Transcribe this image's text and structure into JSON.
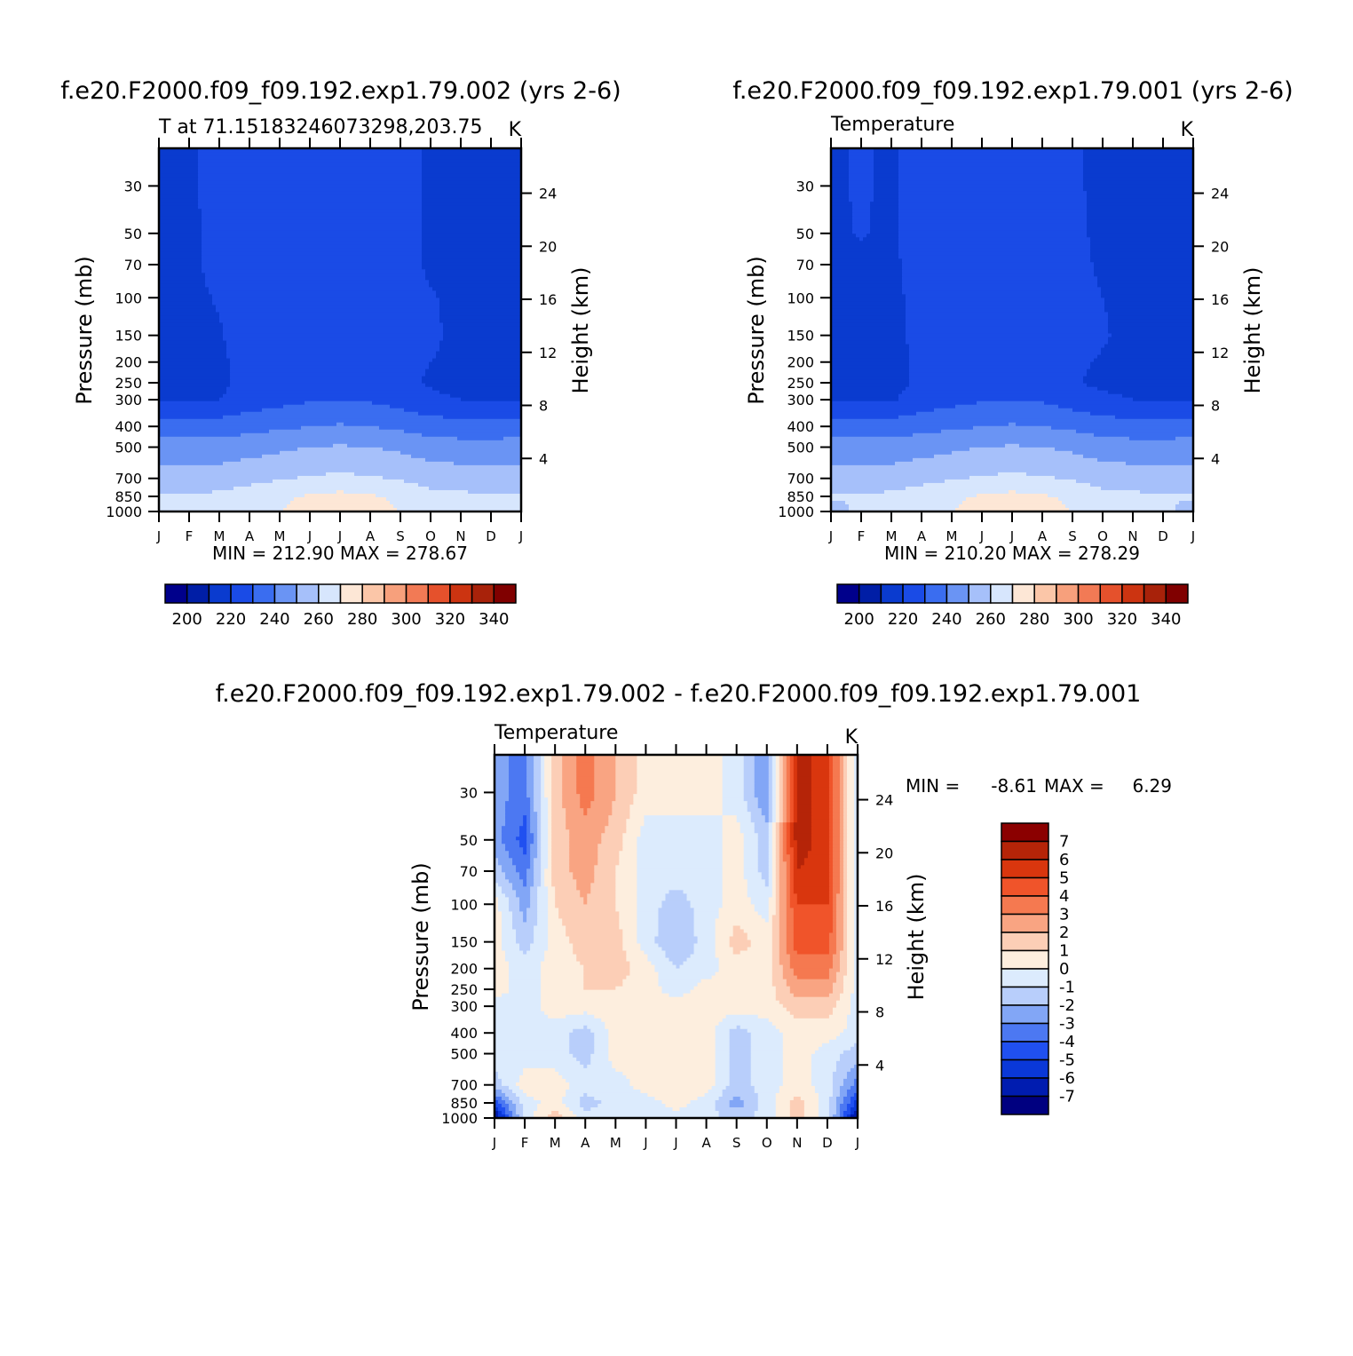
{
  "colors": {
    "cmap_abs": [
      "#00008b",
      "#001ea6",
      "#0a3bcf",
      "#1a4be6",
      "#3a6df0",
      "#6a94f4",
      "#a6c0fa",
      "#d7e6fd",
      "#fde7d6",
      "#fbc6a8",
      "#f7a07c",
      "#f27a55",
      "#e5512c",
      "#cc3411",
      "#a8220a",
      "#800000"
    ],
    "cmap_diff": [
      "#000080",
      "#001cb0",
      "#0a38d8",
      "#2050f0",
      "#4c78f2",
      "#82a6f6",
      "#b8cefb",
      "#dcebfd",
      "#fdeede",
      "#fcceb6",
      "#f9a482",
      "#f57950",
      "#f0542a",
      "#d9360e",
      "#b52408",
      "#8b0000"
    ]
  },
  "charts": [
    {
      "type": "contour",
      "title": "f.e20.F2000.f09_f09.192.exp1.79.002 (yrs 2-6)",
      "subtitle_left": "T at 71.15183246073298,203.75",
      "subtitle_right": "K",
      "ylabel": "Pressure (mb)",
      "y2label": "Height (km)",
      "x_ticks": [
        "J",
        "F",
        "M",
        "A",
        "M",
        "J",
        "J",
        "A",
        "S",
        "O",
        "N",
        "D",
        "J"
      ],
      "pressure_ticks": [
        "30",
        "50",
        "70",
        "100",
        "150",
        "200",
        "250",
        "300",
        "400",
        "500",
        "700",
        "850",
        "1000"
      ],
      "height_ticks": [
        "24",
        "20",
        "16",
        "12",
        "8",
        "4"
      ],
      "minmax": "MIN = 212.90  MAX = 278.67",
      "colorbar_labels": [
        "200",
        "220",
        "240",
        "260",
        "280",
        "300",
        "320",
        "340"
      ]
    },
    {
      "type": "contour",
      "title": "f.e20.F2000.f09_f09.192.exp1.79.001 (yrs 2-6)",
      "subtitle_left": "Temperature",
      "subtitle_right": "K",
      "ylabel": "Pressure (mb)",
      "y2label": "Height (km)",
      "x_ticks": [
        "J",
        "F",
        "M",
        "A",
        "M",
        "J",
        "J",
        "A",
        "S",
        "O",
        "N",
        "D",
        "J"
      ],
      "pressure_ticks": [
        "30",
        "50",
        "70",
        "100",
        "150",
        "200",
        "250",
        "300",
        "400",
        "500",
        "700",
        "850",
        "1000"
      ],
      "height_ticks": [
        "24",
        "20",
        "16",
        "12",
        "8",
        "4"
      ],
      "minmax": "MIN = 210.20  MAX = 278.29",
      "colorbar_labels": [
        "200",
        "220",
        "240",
        "260",
        "280",
        "300",
        "320",
        "340"
      ]
    },
    {
      "type": "contour",
      "title": "f.e20.F2000.f09_f09.192.exp1.79.002 - f.e20.F2000.f09_f09.192.exp1.79.001",
      "subtitle_left": "Temperature",
      "subtitle_right": "K",
      "ylabel": "Pressure (mb)",
      "y2label": "Height (km)",
      "x_ticks": [
        "J",
        "F",
        "M",
        "A",
        "M",
        "J",
        "J",
        "A",
        "S",
        "O",
        "N",
        "D",
        "J"
      ],
      "pressure_ticks": [
        "30",
        "50",
        "70",
        "100",
        "150",
        "200",
        "250",
        "300",
        "400",
        "500",
        "700",
        "850",
        "1000"
      ],
      "height_ticks": [
        "24",
        "20",
        "16",
        "12",
        "8",
        "4"
      ],
      "minmax_label_min": "MIN =",
      "minmax_min": "-8.61",
      "minmax_label_max": "MAX =",
      "minmax_max": "6.29",
      "colorbar_labels": [
        "7",
        "6",
        "5",
        "4",
        "3",
        "2",
        "1",
        "0",
        "-1",
        "-2",
        "-3",
        "-4",
        "-5",
        "-6",
        "-7"
      ]
    }
  ],
  "chart_data": [
    {
      "type": "heatmap",
      "title": "f.e20.F2000.f09_f09.192.exp1.79.002 (yrs 2-6)",
      "variable": "T",
      "units": "K",
      "x": [
        "Jan",
        "Feb",
        "Mar",
        "Apr",
        "May",
        "Jun",
        "Jul",
        "Aug",
        "Sep",
        "Oct",
        "Nov",
        "Dec",
        "Jan"
      ],
      "y_pressure_mb": [
        30,
        50,
        70,
        100,
        150,
        200,
        250,
        300,
        400,
        500,
        700,
        850,
        1000
      ],
      "levels": [
        190,
        200,
        210,
        220,
        230,
        240,
        250,
        260,
        270,
        280,
        290,
        300,
        310,
        320,
        330,
        340
      ],
      "z": [
        [
          217,
          217,
          226,
          228,
          228,
          228,
          228,
          228,
          226,
          217,
          217,
          217,
          217
        ],
        [
          217,
          217,
          225,
          228,
          228,
          228,
          228,
          228,
          226,
          218,
          217,
          217,
          217
        ],
        [
          217,
          217,
          224,
          228,
          228,
          228,
          228,
          228,
          225,
          218,
          217,
          217,
          217
        ],
        [
          217,
          217,
          221,
          228,
          228,
          228,
          228,
          228,
          224,
          221,
          217,
          217,
          217
        ],
        [
          217,
          217,
          219,
          226,
          228,
          228,
          228,
          228,
          224,
          222,
          217,
          217,
          217
        ],
        [
          217,
          217,
          218,
          224,
          228,
          228,
          228,
          228,
          223,
          220,
          217,
          217,
          217
        ],
        [
          217,
          217,
          218,
          223,
          227,
          228,
          228,
          228,
          222,
          219,
          217,
          217,
          217
        ],
        [
          219,
          219,
          220,
          224,
          227,
          229,
          230,
          229,
          226,
          222,
          220,
          219,
          219
        ],
        [
          235,
          235,
          235,
          237,
          238,
          240,
          241,
          240,
          238,
          235,
          234,
          234,
          235
        ],
        [
          244,
          244,
          244,
          246,
          248,
          250,
          251,
          250,
          248,
          245,
          244,
          244,
          244
        ],
        [
          254,
          254,
          255,
          257,
          259,
          261,
          262,
          261,
          259,
          256,
          255,
          254,
          254
        ],
        [
          261,
          261,
          262,
          265,
          268,
          271,
          273,
          271,
          268,
          263,
          262,
          261,
          261
        ],
        [
          262,
          262,
          263,
          266,
          270,
          274,
          276,
          274,
          270,
          265,
          263,
          262,
          262
        ]
      ],
      "min": 212.9,
      "max": 278.67
    },
    {
      "type": "heatmap",
      "title": "f.e20.F2000.f09_f09.192.exp1.79.001 (yrs 2-6)",
      "variable": "Temperature",
      "units": "K",
      "x": [
        "Jan",
        "Feb",
        "Mar",
        "Apr",
        "May",
        "Jun",
        "Jul",
        "Aug",
        "Sep",
        "Oct",
        "Nov",
        "Dec",
        "Jan"
      ],
      "y_pressure_mb": [
        30,
        50,
        70,
        100,
        150,
        200,
        250,
        300,
        400,
        500,
        700,
        850,
        1000
      ],
      "levels": [
        190,
        200,
        210,
        220,
        230,
        240,
        250,
        260,
        270,
        280,
        290,
        300,
        310,
        320,
        330,
        340
      ],
      "z": [
        [
          217,
          222,
          217,
          228,
          228,
          228,
          228,
          228,
          222,
          217,
          217,
          217,
          217
        ],
        [
          217,
          221,
          217,
          228,
          228,
          228,
          228,
          228,
          223,
          217,
          217,
          217,
          217
        ],
        [
          217,
          217,
          217,
          227,
          228,
          228,
          228,
          228,
          224,
          218,
          217,
          217,
          217
        ],
        [
          217,
          217,
          217,
          224,
          228,
          228,
          228,
          228,
          225,
          220,
          217,
          217,
          217
        ],
        [
          217,
          217,
          217,
          223,
          228,
          228,
          228,
          228,
          224,
          221,
          217,
          217,
          217
        ],
        [
          217,
          217,
          217,
          222,
          228,
          228,
          228,
          228,
          222,
          219,
          217,
          217,
          217
        ],
        [
          217,
          217,
          217,
          222,
          227,
          228,
          228,
          228,
          221,
          218,
          217,
          217,
          217
        ],
        [
          219,
          219,
          219,
          224,
          227,
          229,
          230,
          229,
          225,
          222,
          220,
          219,
          219
        ],
        [
          235,
          235,
          235,
          237,
          238,
          240,
          241,
          240,
          238,
          235,
          234,
          234,
          235
        ],
        [
          244,
          244,
          244,
          246,
          248,
          250,
          251,
          250,
          248,
          245,
          244,
          244,
          244
        ],
        [
          254,
          254,
          255,
          257,
          259,
          261,
          262,
          261,
          259,
          256,
          255,
          254,
          254
        ],
        [
          261,
          261,
          262,
          265,
          268,
          271,
          273,
          271,
          268,
          263,
          262,
          261,
          261
        ],
        [
          256,
          262,
          263,
          266,
          270,
          274,
          276,
          274,
          270,
          265,
          263,
          262,
          256
        ]
      ],
      "min": 210.2,
      "max": 278.29
    },
    {
      "type": "heatmap",
      "title": "f.e20.F2000.f09_f09.192.exp1.79.002 - f.e20.F2000.f09_f09.192.exp1.79.001",
      "variable": "Temperature",
      "units": "K",
      "x": [
        "Jan",
        "Feb",
        "Mar",
        "Apr",
        "May",
        "Jun",
        "Jul",
        "Aug",
        "Sep",
        "Oct",
        "Nov",
        "Dec",
        "Jan"
      ],
      "y_pressure_mb": [
        30,
        50,
        70,
        100,
        150,
        200,
        250,
        300,
        400,
        500,
        700,
        850,
        1000
      ],
      "levels": [
        -8,
        -7,
        -6,
        -5,
        -4,
        -3,
        -2,
        -1,
        0,
        1,
        2,
        3,
        4,
        5,
        6,
        7,
        8
      ],
      "z": [
        [
          -2.5,
          -3.5,
          1.5,
          3.5,
          2,
          0.5,
          0.5,
          0.5,
          -0.5,
          -3,
          6.5,
          5.5,
          -1
        ],
        [
          -2.5,
          -4.5,
          1.5,
          2.5,
          1.5,
          -0.5,
          -0.5,
          -0.5,
          0.5,
          -1.5,
          6.5,
          5.5,
          -1
        ],
        [
          -1.5,
          -3.5,
          1.5,
          2.5,
          1,
          -0.5,
          -0.5,
          -0.5,
          0.5,
          -1.5,
          6,
          5.5,
          -1
        ],
        [
          0.5,
          -2.5,
          1,
          2,
          1,
          -0.5,
          -1.5,
          -0.5,
          0.5,
          -0.5,
          5,
          5,
          -1
        ],
        [
          0.5,
          -1.5,
          0.5,
          1.5,
          1.5,
          -0.5,
          -2,
          -0.5,
          1.5,
          0.5,
          4.5,
          4.5,
          -0.5
        ],
        [
          0.5,
          -0.5,
          0.5,
          1,
          1.5,
          0.5,
          -1,
          -0.5,
          0.5,
          0.5,
          3.5,
          3.5,
          -0.5
        ],
        [
          0.5,
          -0.5,
          0.5,
          1,
          1,
          0.5,
          -0.5,
          0.5,
          0.5,
          0.5,
          2.5,
          2.5,
          -0.5
        ],
        [
          -0.5,
          -0.5,
          0.5,
          0.5,
          0.5,
          0.5,
          0.5,
          0.5,
          0.5,
          0.5,
          1.5,
          1.5,
          -0.5
        ],
        [
          -0.5,
          -0.5,
          -0.5,
          -1.5,
          0.5,
          0.5,
          0.5,
          0.5,
          -1.5,
          -0.5,
          0.5,
          0.5,
          -0.5
        ],
        [
          -0.5,
          -0.5,
          -0.5,
          -1.5,
          0.5,
          0.5,
          0.5,
          0.5,
          -1.5,
          -0.5,
          0.5,
          -0.5,
          -1.5
        ],
        [
          -1.5,
          0.5,
          0.5,
          -0.5,
          -0.5,
          0.5,
          0.5,
          0.5,
          -1.5,
          -0.5,
          0.5,
          -0.5,
          -3.5
        ],
        [
          -4.5,
          -0.5,
          0.5,
          -1.5,
          -0.5,
          -0.5,
          0.5,
          -0.5,
          -2.5,
          -0.5,
          1.5,
          -0.5,
          -5.5
        ],
        [
          -7.5,
          -0.5,
          1.5,
          -0.5,
          -0.5,
          -0.5,
          -0.5,
          -0.5,
          -1.5,
          -0.5,
          1.5,
          -0.5,
          -7.5
        ]
      ],
      "min": -8.61,
      "max": 6.29
    }
  ]
}
